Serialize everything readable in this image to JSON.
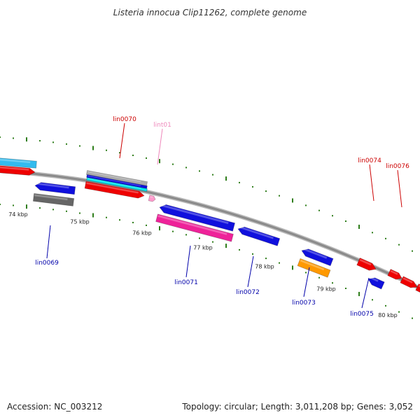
{
  "title": "Listeria innocua Clip11262, complete genome",
  "footer": {
    "accession": "Accession: NC_003212",
    "summary": "Topology: circular; Length: 3,011,208 bp; Genes: 3,052"
  },
  "colors": {
    "backbone": "#8a8a8a",
    "tick": "#2e7d1a",
    "label_top": "#cc0000",
    "label_bottom": "#0000aa",
    "label_trna": "#ee88bb",
    "gene_red": "#ee0000",
    "gene_blue": "#1010dd",
    "gene_cyan": "#33bbee",
    "gene_gray": "#666666",
    "gene_pink": "#ee2299",
    "gene_orange": "#ff9900",
    "gene_trna": "#ff99cc"
  },
  "kbp_labels": [
    "74 kbp",
    "75 kbp",
    "76 kbp",
    "77 kbp",
    "78 kbp",
    "79 kbp",
    "80 kbp"
  ],
  "gene_labels": [
    "lin0070",
    "lint01",
    "lin0074",
    "lin0076",
    "lin0069",
    "lin0071",
    "lin0072",
    "lin0073",
    "lin0075"
  ]
}
